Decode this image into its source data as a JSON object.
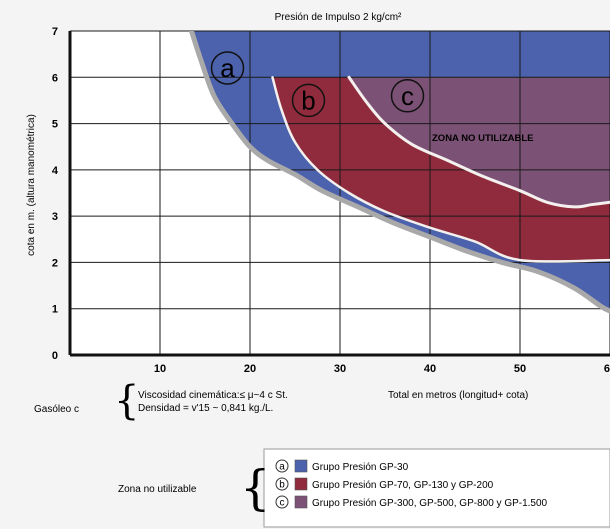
{
  "chart_data": {
    "type": "area",
    "title": "Presión de Impulso 2 kg/cm²",
    "xlabel": "Total en metros (longitud+ cota)",
    "ylabel": "cota en m. (altura manométrica)",
    "xlim": [
      0,
      60
    ],
    "ylim": [
      0,
      7
    ],
    "x_ticks": [
      "10",
      "20",
      "30",
      "40",
      "50",
      "60"
    ],
    "y_ticks": [
      "0",
      "1",
      "2",
      "3",
      "4",
      "5",
      "6",
      "7"
    ],
    "grid": true,
    "zone_label": "ZONA NO UTILIZABLE",
    "series": [
      {
        "name": "Grupo Presión GP-30",
        "marker": "a",
        "color": "#4c62ac",
        "boundary": [
          [
            13.5,
            7
          ],
          [
            14.5,
            6.4
          ],
          [
            16,
            5.6
          ],
          [
            18,
            5.0
          ],
          [
            20,
            4.5
          ],
          [
            22,
            4.2
          ],
          [
            25,
            3.9
          ],
          [
            28,
            3.55
          ],
          [
            32,
            3.2
          ],
          [
            36,
            2.85
          ],
          [
            40,
            2.55
          ],
          [
            44,
            2.25
          ],
          [
            48,
            2.0
          ],
          [
            52,
            1.8
          ],
          [
            56,
            1.45
          ],
          [
            59,
            1.05
          ],
          [
            60,
            0.95
          ]
        ]
      },
      {
        "name": "Grupo Presión GP-70, GP-130 y GP-200",
        "marker": "b",
        "color": "#8f2b3c",
        "boundary": [
          [
            22.5,
            6
          ],
          [
            23.5,
            5.3
          ],
          [
            25,
            4.6
          ],
          [
            27.5,
            4.0
          ],
          [
            31,
            3.5
          ],
          [
            35,
            3.1
          ],
          [
            40,
            2.75
          ],
          [
            45,
            2.45
          ],
          [
            50,
            2.05
          ],
          [
            60,
            2.05
          ]
        ]
      },
      {
        "name": "Grupo Presión GP-300, GP-500, GP-800 y GP-1.500",
        "marker": "c",
        "color": "#7c5176",
        "boundary": [
          [
            31,
            6
          ],
          [
            33,
            5.45
          ],
          [
            35,
            5.0
          ],
          [
            38,
            4.55
          ],
          [
            42,
            4.2
          ],
          [
            46,
            3.85
          ],
          [
            50,
            3.55
          ],
          [
            53,
            3.3
          ],
          [
            56,
            3.2
          ],
          [
            58,
            3.25
          ],
          [
            60,
            3.3
          ]
        ]
      }
    ]
  },
  "fluid": {
    "name": "Gasóleo c",
    "viscosity": "Viscosidad cinemática:≤   μ~4 c St.",
    "density": "Densidad = v'15 ~ 0,841 kg./L."
  },
  "legend": {
    "caption": "Zona no utilizable",
    "items": [
      {
        "marker": "a",
        "label": "Grupo Presión GP-30"
      },
      {
        "marker": "b",
        "label": "Grupo Presión GP-70, GP-130 y GP-200"
      },
      {
        "marker": "c",
        "label": "Grupo Presión GP-300, GP-500, GP-800 y GP-1.500"
      }
    ]
  }
}
